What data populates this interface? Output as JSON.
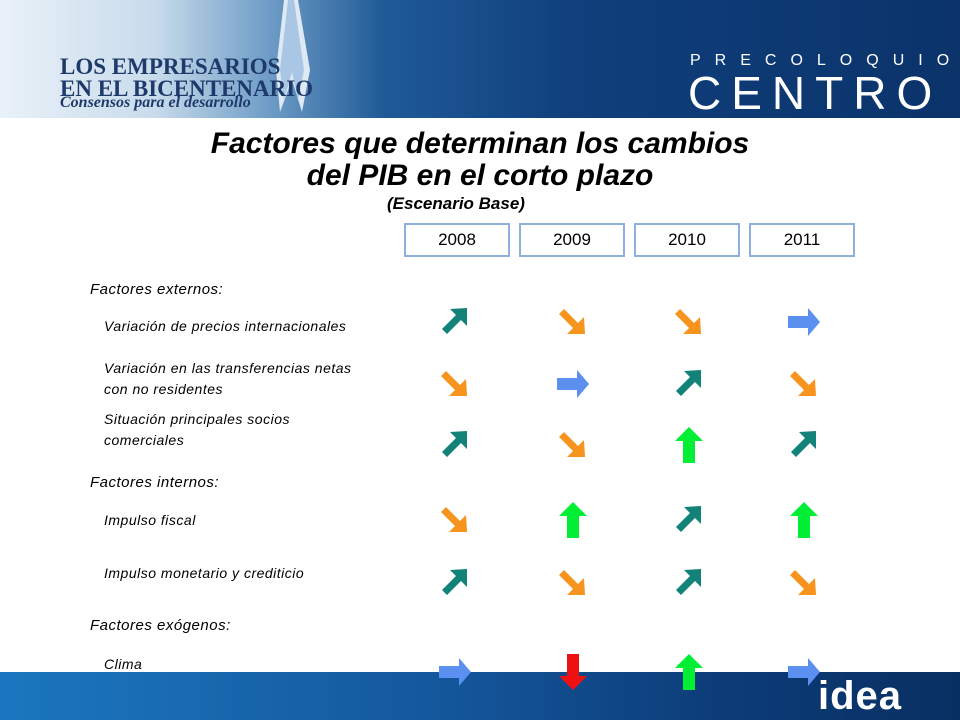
{
  "header": {
    "logo_line1": "LOS EMPRESARIOS",
    "logo_line2": "EN EL BICENTENARIO",
    "logo_tagline": "Consensos para el desarrollo",
    "preloquio": "PRECOLOQUIO",
    "centro": "CENTRO"
  },
  "title_line1": "Factores que determinan los cambios",
  "title_line2": "del PIB en el corto plazo",
  "subtitle": "(Escenario Base)",
  "years": [
    "2008",
    "2009",
    "2010",
    "2011"
  ],
  "sections": {
    "externos": "Factores externos:",
    "internos": "Factores internos:",
    "exogenos": "Factores exógenos:"
  },
  "items": {
    "precios": "Variación de precios internacionales",
    "transferencias_1": "Variación en las transferencias netas",
    "transferencias_2": "con no residentes",
    "socios_1": "Situación principales socios",
    "socios_2": "comerciales",
    "fiscal": "Impulso fiscal",
    "monetario": "Impulso monetario y crediticio",
    "clima": "Clima"
  },
  "legend_icons": {
    "up-right": "teal arrow up-right",
    "down-right": "orange arrow down-right",
    "right": "blue arrow right",
    "up": "green arrow up",
    "down": "red arrow down"
  },
  "table": [
    {
      "row": "precios",
      "arrows": [
        "up-right",
        "down-right",
        "down-right",
        "right"
      ]
    },
    {
      "row": "transferencias",
      "arrows": [
        "down-right",
        "right",
        "up-right",
        "down-right"
      ]
    },
    {
      "row": "socios",
      "arrows": [
        "up-right",
        "down-right",
        "up",
        "up-right"
      ]
    },
    {
      "row": "fiscal",
      "arrows": [
        "down-right",
        "up",
        "up-right",
        "up"
      ]
    },
    {
      "row": "monetario",
      "arrows": [
        "up-right",
        "down-right",
        "up-right",
        "down-right"
      ]
    },
    {
      "row": "clima",
      "arrows": [
        "right",
        "down",
        "up",
        "right"
      ]
    }
  ],
  "colors": {
    "teal": "#138279",
    "orange": "#f7941d",
    "blue": "#5b8ff0",
    "green": "#00ee33",
    "red": "#ee1111",
    "header_dark": "#0b336a",
    "year_border": "#8fb0dc"
  },
  "footer_logo": "idea"
}
